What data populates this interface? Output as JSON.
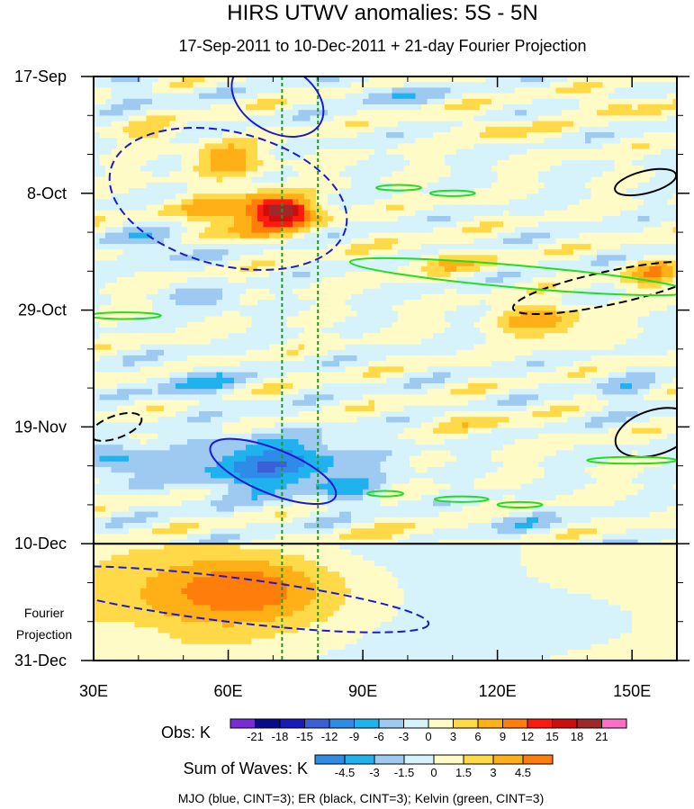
{
  "chart_data": {
    "type": "heatmap",
    "title": "HIRS UTWV anomalies: 5S - 5N",
    "subtitle": "17-Sep-2011 to 10-Dec-2011 + 21-day Fourier Projection",
    "x_ticks": [
      {
        "label": "30E",
        "value": 30
      },
      {
        "label": "60E",
        "value": 60
      },
      {
        "label": "90E",
        "value": 90
      },
      {
        "label": "120E",
        "value": 120
      },
      {
        "label": "150E",
        "value": 150
      }
    ],
    "xlim": [
      30,
      160
    ],
    "y_ticks": [
      {
        "label": "17-Sep",
        "day": 0
      },
      {
        "label": "8-Oct",
        "day": 21
      },
      {
        "label": "29-Oct",
        "day": 42
      },
      {
        "label": "19-Nov",
        "day": 63
      },
      {
        "label": "10-Dec",
        "day": 84
      },
      {
        "label": "31-Dec",
        "day": 105
      }
    ],
    "ylim_days": [
      0,
      105
    ],
    "projection_label_line1": "Fourier",
    "projection_label_line2": "Projection",
    "obs_label": "Obs: K",
    "obs_levels": [
      "-21",
      "-18",
      "-15",
      "-12",
      "-9",
      "-6",
      "-3",
      "0",
      "3",
      "6",
      "9",
      "12",
      "15",
      "18",
      "21"
    ],
    "obs_colors": [
      "#7b2bd6",
      "#0a0a8c",
      "#1a1ab8",
      "#3b5fd9",
      "#2f8be8",
      "#1fb2ee",
      "#9ec9f0",
      "#d6f2fb",
      "#fffbc6",
      "#ffd948",
      "#ffb016",
      "#ff7d0a",
      "#ff1a10",
      "#cc0e0e",
      "#a0282a",
      "#ff6ec7"
    ],
    "wave_label": "Sum of Waves: K",
    "wave_levels": [
      "-4.5",
      "-3",
      "-1.5",
      "0",
      "1.5",
      "3",
      "4.5"
    ],
    "wave_colors": [
      "#2f8be8",
      "#1fb2ee",
      "#9ec9f0",
      "#d6f2fb",
      "#fffbc6",
      "#ffd948",
      "#ffb016",
      "#ff7d0a"
    ],
    "footnote": "MJO (blue, CINT=3); ER (black, CINT=3); Kelvin (green, CINT=3)",
    "reference_longitudes": [
      72,
      80
    ],
    "anomaly_features": [
      {
        "lon": 72,
        "day": 24,
        "value": 15,
        "rlon": 6,
        "rday": 2
      },
      {
        "lon": 65,
        "day": 25,
        "value": 10,
        "rlon": 14,
        "rday": 4
      },
      {
        "lon": 60,
        "day": 15,
        "value": 8,
        "rlon": 8,
        "rday": 3
      },
      {
        "lon": 42,
        "day": 10,
        "value": 4,
        "rlon": 6,
        "rday": 2
      },
      {
        "lon": 53,
        "day": 55,
        "value": -6,
        "rlon": 8,
        "rday": 3
      },
      {
        "lon": 70,
        "day": 70,
        "value": -11,
        "rlon": 20,
        "rday": 5
      },
      {
        "lon": 35,
        "day": 69,
        "value": -7,
        "rlon": 7,
        "rday": 3
      },
      {
        "lon": 55,
        "day": 40,
        "value": -5,
        "rlon": 7,
        "rday": 2
      },
      {
        "lon": 45,
        "day": 30,
        "value": -6,
        "rlon": 8,
        "rday": 3
      },
      {
        "lon": 95,
        "day": 3,
        "value": -5,
        "rlon": 8,
        "rday": 2
      },
      {
        "lon": 40,
        "day": 3,
        "value": -4,
        "rlon": 6,
        "rday": 2
      },
      {
        "lon": 130,
        "day": 44,
        "value": 8,
        "rlon": 10,
        "rday": 3
      },
      {
        "lon": 155,
        "day": 36,
        "value": 7,
        "rlon": 6,
        "rday": 3
      },
      {
        "lon": 108,
        "day": 33,
        "value": 5,
        "rlon": 10,
        "rday": 2
      },
      {
        "lon": 150,
        "day": 57,
        "value": -4,
        "rlon": 6,
        "rday": 3
      },
      {
        "lon": 100,
        "day": 85,
        "value": 3,
        "rlon": 14,
        "rday": 4
      },
      {
        "lon": 120,
        "day": 9,
        "value": 4,
        "rlon": 8,
        "rday": 2
      },
      {
        "lon": 145,
        "day": 5,
        "value": 5,
        "rlon": 6,
        "rday": 2
      },
      {
        "lon": 115,
        "day": 62,
        "value": 4,
        "rlon": 8,
        "rday": 2
      },
      {
        "lon": 125,
        "day": 80,
        "value": -3,
        "rlon": 10,
        "rday": 2
      },
      {
        "lon": 88,
        "day": 75,
        "value": -4,
        "rlon": 6,
        "rday": 2
      }
    ],
    "projection_features": [
      {
        "lon": 65,
        "day": 92,
        "value": 4,
        "rlon": 20,
        "rday": 6
      },
      {
        "lon": 60,
        "day": 95,
        "value": 2,
        "rlon": 35,
        "rday": 10
      },
      {
        "lon": 40,
        "day": 101,
        "value": -1,
        "rlon": 10,
        "rday": 4
      },
      {
        "lon": 140,
        "day": 98,
        "value": -1,
        "rlon": 20,
        "rday": 6
      }
    ],
    "wave_contours": [
      {
        "wave": "MJO",
        "style": "solid",
        "center_lon": 71,
        "center_day": 4,
        "semi_lon": 11,
        "semi_day": 6,
        "tilt_deg": 30
      },
      {
        "wave": "MJO",
        "style": "dashed",
        "center_lon": 60,
        "center_day": 22,
        "semi_lon": 27,
        "semi_day": 12,
        "tilt_deg": 14
      },
      {
        "wave": "MJO",
        "style": "solid",
        "center_lon": 70,
        "center_day": 71,
        "semi_lon": 15,
        "semi_day": 4,
        "tilt_deg": 22
      },
      {
        "wave": "MJO",
        "style": "dashed",
        "center_lon": 60,
        "center_day": 94,
        "semi_lon": 45,
        "semi_day": 4,
        "tilt_deg": 7
      },
      {
        "wave": "ER",
        "style": "solid",
        "center_lon": 153,
        "center_day": 19,
        "semi_lon": 7,
        "semi_day": 2,
        "tilt_deg": -14
      },
      {
        "wave": "ER",
        "style": "dashed",
        "center_lon": 145,
        "center_day": 38,
        "semi_lon": 22,
        "semi_day": 3,
        "tilt_deg": -12
      },
      {
        "wave": "ER",
        "style": "dashed",
        "center_lon": 35,
        "center_day": 63,
        "semi_lon": 6,
        "semi_day": 2,
        "tilt_deg": -20
      },
      {
        "wave": "ER",
        "style": "solid",
        "center_lon": 155,
        "center_day": 64,
        "semi_lon": 9,
        "semi_day": 4,
        "tilt_deg": -18
      },
      {
        "wave": "Kelvin",
        "style": "solid",
        "center_lon": 125,
        "center_day": 36,
        "semi_lon": 38,
        "semi_day": 2,
        "tilt_deg": 5
      },
      {
        "wave": "Kelvin",
        "style": "solid",
        "center_lon": 98,
        "center_day": 20,
        "semi_lon": 5,
        "semi_day": 0.5,
        "tilt_deg": 0
      },
      {
        "wave": "Kelvin",
        "style": "solid",
        "center_lon": 110,
        "center_day": 21,
        "semi_lon": 5,
        "semi_day": 0.5,
        "tilt_deg": 0
      },
      {
        "wave": "Kelvin",
        "style": "solid",
        "center_lon": 37,
        "center_day": 43,
        "semi_lon": 8,
        "semi_day": 0.6,
        "tilt_deg": 0
      },
      {
        "wave": "Kelvin",
        "style": "solid",
        "center_lon": 150,
        "center_day": 69,
        "semi_lon": 10,
        "semi_day": 0.6,
        "tilt_deg": 0
      },
      {
        "wave": "Kelvin",
        "style": "solid",
        "center_lon": 112,
        "center_day": 76,
        "semi_lon": 6,
        "semi_day": 0.5,
        "tilt_deg": 0
      },
      {
        "wave": "Kelvin",
        "style": "solid",
        "center_lon": 125,
        "center_day": 77,
        "semi_lon": 5,
        "semi_day": 0.5,
        "tilt_deg": 0
      },
      {
        "wave": "Kelvin",
        "style": "solid",
        "center_lon": 95,
        "center_day": 75,
        "semi_lon": 4,
        "semi_day": 0.5,
        "tilt_deg": 0
      }
    ],
    "wave_colors_by_type": {
      "MJO": "#1a1ad0",
      "ER": "#000000",
      "Kelvin": "#22dd22"
    },
    "reference_line_color": "#1e9a1e"
  }
}
